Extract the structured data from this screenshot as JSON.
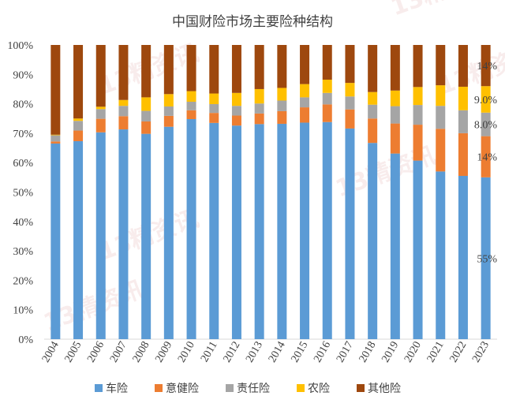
{
  "chart_data": {
    "type": "bar",
    "stacked": true,
    "title": "中国财险市场主要险种结构",
    "xlabel": "",
    "ylabel": "",
    "ylim": [
      0,
      100
    ],
    "y_ticks": [
      "0%",
      "10%",
      "20%",
      "30%",
      "40%",
      "50%",
      "60%",
      "70%",
      "80%",
      "90%",
      "100%"
    ],
    "categories": [
      "2004",
      "2005",
      "2006",
      "2007",
      "2008",
      "2009",
      "2010",
      "2011",
      "2012",
      "2013",
      "2014",
      "2015",
      "2016",
      "2017",
      "2018",
      "2019",
      "2020",
      "2021",
      "2022",
      "2023"
    ],
    "series": [
      {
        "name": "车险",
        "color": "#5b9bd5",
        "values": [
          66.5,
          67.3,
          70.3,
          71.3,
          69.8,
          72.2,
          74.8,
          73.5,
          72.6,
          73.1,
          73.2,
          73.6,
          73.8,
          71.6,
          66.7,
          63.1,
          60.7,
          57.0,
          55.5,
          55.0
        ]
      },
      {
        "name": "意健险",
        "color": "#ed7d31",
        "values": [
          0.7,
          3.6,
          4.6,
          4.5,
          4.2,
          3.7,
          3.0,
          3.4,
          3.4,
          3.6,
          4.3,
          5.2,
          6.0,
          6.5,
          8.3,
          10.2,
          12.2,
          14.5,
          14.5,
          14.0
        ]
      },
      {
        "name": "责任险",
        "color": "#a5a5a5",
        "values": [
          2.1,
          3.3,
          3.3,
          3.5,
          3.6,
          3.2,
          2.9,
          3.0,
          3.3,
          3.4,
          3.6,
          3.4,
          3.9,
          4.4,
          4.7,
          5.9,
          6.7,
          7.8,
          7.8,
          8.0
        ]
      },
      {
        "name": "农险",
        "color": "#ffc000",
        "values": [
          0.2,
          0.8,
          0.8,
          2.0,
          4.6,
          4.2,
          3.6,
          3.6,
          4.4,
          4.9,
          4.3,
          4.5,
          4.5,
          4.6,
          4.3,
          5.3,
          6.1,
          7.0,
          8.0,
          9.0
        ]
      },
      {
        "name": "其他险",
        "color": "#9e480e",
        "values": [
          30.5,
          25.0,
          21.0,
          18.7,
          17.8,
          16.7,
          15.7,
          16.5,
          16.3,
          15.0,
          14.6,
          13.3,
          11.8,
          12.9,
          16.0,
          15.5,
          14.3,
          13.7,
          14.2,
          14.0
        ]
      }
    ],
    "annotations": [
      {
        "category": "2023",
        "series": "车险",
        "text": "55%"
      },
      {
        "category": "2023",
        "series": "意健险",
        "text": "14%"
      },
      {
        "category": "2023",
        "series": "责任险",
        "text": "8.0%"
      },
      {
        "category": "2023",
        "series": "农险",
        "text": "9.0%"
      },
      {
        "category": "2023",
        "series": "其他险",
        "text": "14%"
      }
    ],
    "legend": [
      "车险",
      "意健险",
      "责任险",
      "农险",
      "其他险"
    ],
    "legend_position": "bottom"
  },
  "watermark": "13精资讯"
}
